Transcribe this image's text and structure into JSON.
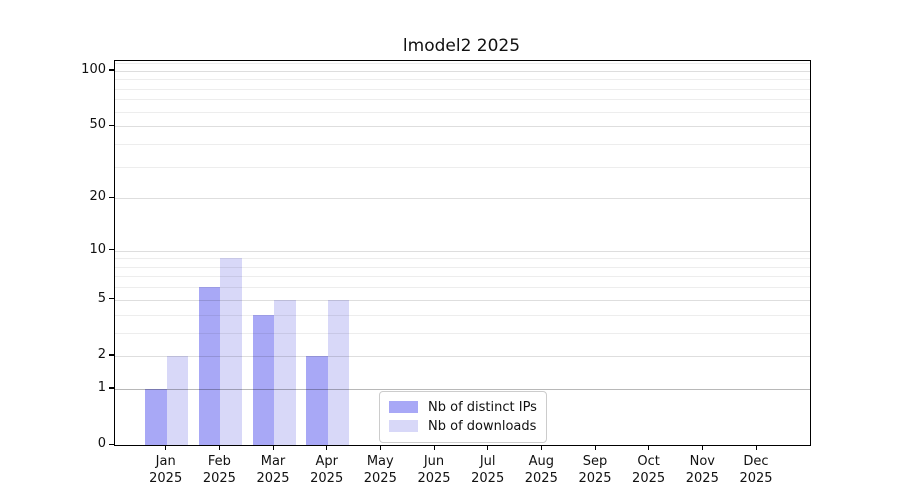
{
  "title": "lmodel2 2025",
  "chart_data": {
    "type": "bar",
    "title": "lmodel2 2025",
    "categories": [
      "Jan 2025",
      "Feb 2025",
      "Mar 2025",
      "Apr 2025",
      "May 2025",
      "Jun 2025",
      "Jul 2025",
      "Aug 2025",
      "Sep 2025",
      "Oct 2025",
      "Nov 2025",
      "Dec 2025"
    ],
    "series": [
      {
        "name": "Nb of distinct IPs",
        "color": "#a8a8f6",
        "values": [
          1,
          6,
          4,
          2,
          0,
          0,
          0,
          0,
          0,
          0,
          0,
          0
        ]
      },
      {
        "name": "Nb of downloads",
        "color": "#d8d8f8",
        "values": [
          2,
          9,
          5,
          5,
          0,
          0,
          0,
          0,
          0,
          0,
          0,
          0
        ]
      }
    ],
    "xlabel": "",
    "ylabel": "",
    "yscale": "log10(1+v)",
    "ylim": [
      0,
      113
    ],
    "yticks": [
      0,
      1,
      2,
      5,
      10,
      20,
      50,
      100
    ],
    "minor_gridlines": [
      3,
      4,
      6,
      7,
      8,
      9,
      30,
      40,
      60,
      70,
      80,
      90,
      110
    ],
    "major_gridlines": [
      2,
      5,
      10,
      20,
      50,
      100
    ],
    "baseline_gridline": 1,
    "grid": "horizontal",
    "legend_position": "lower center inside"
  },
  "colors": {
    "axis": "#000000",
    "text": "#111111",
    "grid_minor": "rgba(0,0,0,0.07)",
    "grid_major": "rgba(0,0,0,0.13)",
    "grid_baseline": "rgba(0,0,0,0.28)",
    "legend_border": "#cccccc"
  }
}
